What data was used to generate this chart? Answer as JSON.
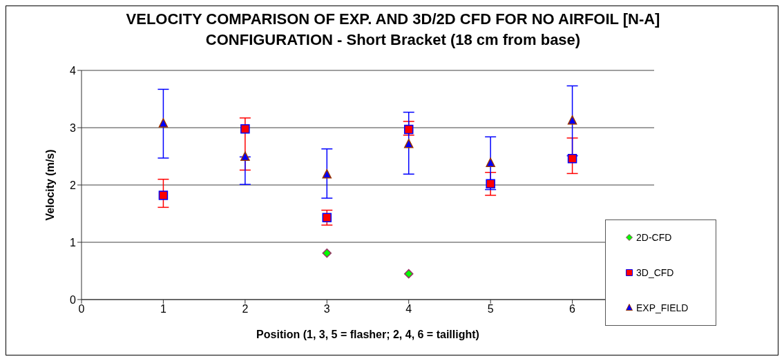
{
  "chart_data": {
    "type": "scatter",
    "title": "VELOCITY COMPARISON OF EXP. AND 3D/2D CFD FOR NO AIRFOIL [N-A] CONFIGURATION - Short Bracket (18 cm from base)",
    "xlabel": "Position (1, 3, 5 = flasher; 2, 4, 6 = taillight)",
    "ylabel": "Velocity (m/s)",
    "xlim": [
      0,
      7
    ],
    "xticks": [
      0,
      1,
      2,
      3,
      4,
      5,
      6,
      {
        "value": 7,
        "label": null
      }
    ],
    "ylim": [
      0,
      4
    ],
    "yticks": [
      0,
      1,
      2,
      3,
      4
    ],
    "grid": "y",
    "legend": "bottom right",
    "series": [
      {
        "name": "2D-CFD",
        "color": "#00ff00",
        "marker": "diamond",
        "x": [
          3,
          4
        ],
        "values": [
          0.81,
          0.45
        ]
      },
      {
        "name": "3D_CFD",
        "color": "#ff0000",
        "marker": "square",
        "x": [
          1,
          2,
          3,
          4,
          5,
          6
        ],
        "values": [
          1.82,
          2.98,
          1.43,
          2.97,
          2.02,
          2.46
        ],
        "errors": [
          [
            1.61,
            2.1
          ],
          [
            2.26,
            3.17
          ],
          [
            1.3,
            1.56
          ],
          [
            2.87,
            3.11
          ],
          [
            1.82,
            2.22
          ],
          [
            2.2,
            2.82
          ]
        ]
      },
      {
        "name": "EXP_FIELD",
        "color": "#0000ff",
        "marker": "triangle",
        "x": [
          1,
          2,
          3,
          4,
          5,
          6
        ],
        "values": [
          3.07,
          2.49,
          2.18,
          2.71,
          2.38,
          3.12
        ],
        "errors": [
          [
            2.47,
            3.67
          ],
          [
            2.01,
            2.49
          ],
          [
            1.77,
            2.63
          ],
          [
            2.19,
            3.27
          ],
          [
            1.92,
            2.84
          ],
          [
            2.51,
            3.73
          ]
        ]
      }
    ]
  }
}
